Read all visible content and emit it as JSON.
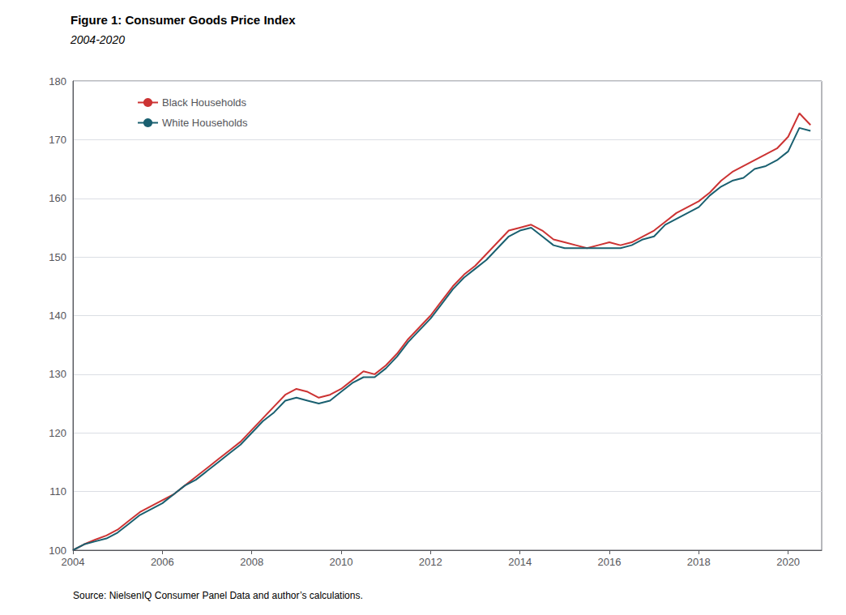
{
  "chart_data": {
    "type": "line",
    "title": "Figure 1: Consumer Goods Price Index",
    "subtitle": "2004-2020",
    "annotations": [
      "Source: NielsenIQ Consumer Panel Data and author’s calculations."
    ],
    "xlim": [
      2004,
      2020.75
    ],
    "xticks": [
      2004,
      2006,
      2008,
      2010,
      2012,
      2014,
      2016,
      2018,
      2020
    ],
    "ylim": [
      100,
      180
    ],
    "yticks": [
      100,
      110,
      120,
      130,
      140,
      150,
      160,
      170,
      180
    ],
    "grid": true,
    "legend": "upper left",
    "x": [
      2004.0,
      2004.25,
      2004.5,
      2004.75,
      2005.0,
      2005.25,
      2005.5,
      2005.75,
      2006.0,
      2006.25,
      2006.5,
      2006.75,
      2007.0,
      2007.25,
      2007.5,
      2007.75,
      2008.0,
      2008.25,
      2008.5,
      2008.75,
      2009.0,
      2009.25,
      2009.5,
      2009.75,
      2010.0,
      2010.25,
      2010.5,
      2010.75,
      2011.0,
      2011.25,
      2011.5,
      2011.75,
      2012.0,
      2012.25,
      2012.5,
      2012.75,
      2013.0,
      2013.25,
      2013.5,
      2013.75,
      2014.0,
      2014.25,
      2014.5,
      2014.75,
      2015.0,
      2015.25,
      2015.5,
      2015.75,
      2016.0,
      2016.25,
      2016.5,
      2016.75,
      2017.0,
      2017.25,
      2017.5,
      2017.75,
      2018.0,
      2018.25,
      2018.5,
      2018.75,
      2019.0,
      2019.25,
      2019.5,
      2019.75,
      2020.0,
      2020.25,
      2020.5
    ],
    "series": [
      {
        "name": "Black Households",
        "color": "#cc3333",
        "values": [
          100.0,
          101.0,
          101.8,
          102.5,
          103.5,
          105.0,
          106.5,
          107.5,
          108.5,
          109.5,
          111.0,
          112.5,
          114.0,
          115.5,
          117.0,
          118.5,
          120.5,
          122.5,
          124.5,
          126.5,
          127.5,
          127.0,
          126.0,
          126.5,
          127.5,
          129.0,
          130.5,
          130.0,
          131.5,
          133.5,
          136.0,
          138.0,
          140.0,
          142.5,
          145.0,
          147.0,
          148.5,
          150.5,
          152.5,
          154.5,
          155.0,
          155.5,
          154.5,
          153.0,
          152.5,
          152.0,
          151.5,
          152.0,
          152.5,
          152.0,
          152.5,
          153.5,
          154.5,
          156.0,
          157.5,
          158.5,
          159.5,
          161.0,
          163.0,
          164.5,
          165.5,
          166.5,
          167.5,
          168.5,
          170.5,
          174.5,
          172.5
        ]
      },
      {
        "name": "White Households",
        "color": "#1a6070",
        "values": [
          100.0,
          101.0,
          101.5,
          102.0,
          103.0,
          104.5,
          106.0,
          107.0,
          108.0,
          109.5,
          111.0,
          112.0,
          113.5,
          115.0,
          116.5,
          118.0,
          120.0,
          122.0,
          123.5,
          125.5,
          126.0,
          125.5,
          125.0,
          125.5,
          127.0,
          128.5,
          129.5,
          129.5,
          131.0,
          133.0,
          135.5,
          137.5,
          139.5,
          142.0,
          144.5,
          146.5,
          148.0,
          149.5,
          151.5,
          153.5,
          154.5,
          155.0,
          153.5,
          152.0,
          151.5,
          151.5,
          151.5,
          151.5,
          151.5,
          151.5,
          152.0,
          153.0,
          153.5,
          155.5,
          156.5,
          157.5,
          158.5,
          160.5,
          162.0,
          163.0,
          163.5,
          165.0,
          165.5,
          166.5,
          168.0,
          172.0,
          171.5
        ]
      }
    ]
  }
}
